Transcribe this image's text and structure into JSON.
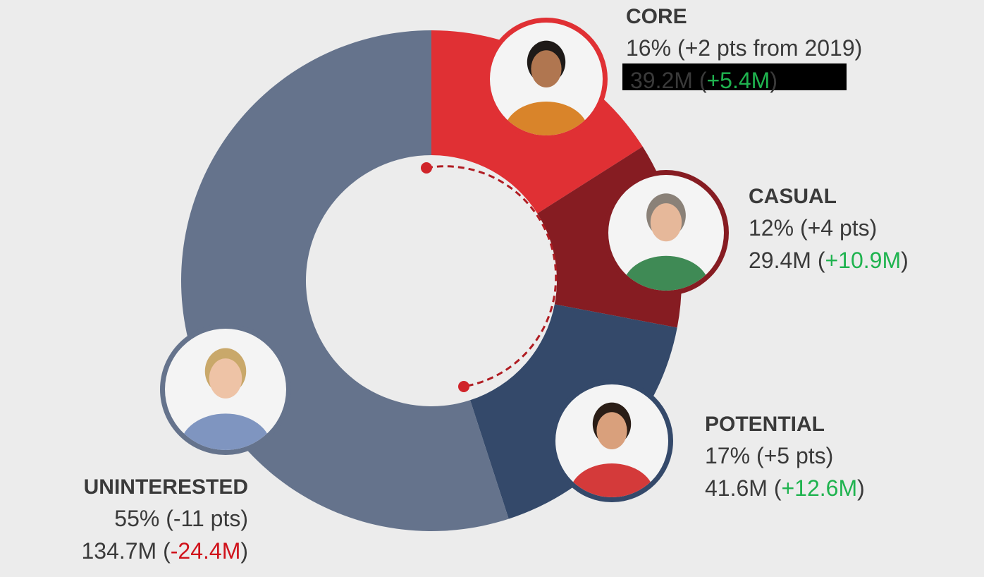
{
  "chart_data": {
    "type": "pie",
    "donut": true,
    "categories": [
      "CORE",
      "CASUAL",
      "POTENTIAL",
      "UNINTERESTED"
    ],
    "values": [
      16,
      12,
      17,
      55
    ],
    "value_labels": [
      "16%",
      "12%",
      "17%",
      "55%"
    ],
    "colors": [
      "#e03034",
      "#861c22",
      "#34496a",
      "#65738c"
    ],
    "changes": [
      "(+2 pts from 2019)",
      "(+4 pts)",
      "(+5 pts)",
      "(-11 pts)"
    ],
    "audience": [
      "39.2M",
      "29.4M",
      "41.6M",
      "134.7M"
    ],
    "audience_changes": [
      "(+5.4M)",
      "(+10.9M)",
      "(+12.6M)",
      "(-24.4M)"
    ]
  }
}
